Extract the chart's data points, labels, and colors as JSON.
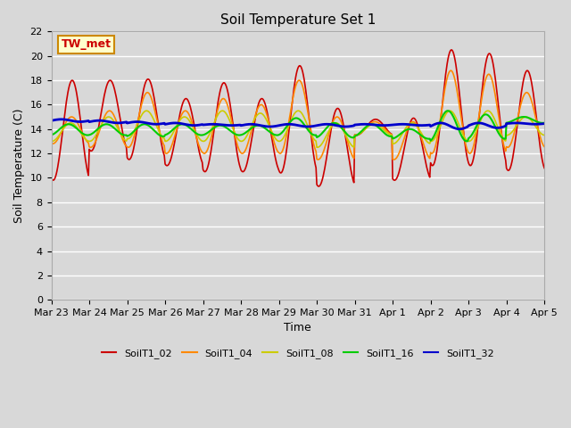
{
  "title": "Soil Temperature Set 1",
  "xlabel": "Time",
  "ylabel": "Soil Temperature (C)",
  "ylim": [
    0,
    22
  ],
  "yticks": [
    0,
    2,
    4,
    6,
    8,
    10,
    12,
    14,
    16,
    18,
    20,
    22
  ],
  "annotation_text": "TW_met",
  "annotation_color": "#cc0000",
  "annotation_bg": "#ffffcc",
  "annotation_border": "#cc8800",
  "bg_color": "#d8d8d8",
  "plot_bg_color": "#d8d8d8",
  "series_names": [
    "SoilT1_02",
    "SoilT1_04",
    "SoilT1_08",
    "SoilT1_16",
    "SoilT1_32"
  ],
  "series_colors": [
    "#cc0000",
    "#ff8800",
    "#cccc00",
    "#00cc00",
    "#0000cc"
  ],
  "series_linewidths": [
    1.2,
    1.2,
    1.2,
    1.5,
    2.0
  ],
  "xtick_labels": [
    "Mar 23",
    "Mar 24",
    "Mar 25",
    "Mar 26",
    "Mar 27",
    "Mar 28",
    "Mar 29",
    "Mar 30",
    "Mar 31",
    "Apr 1",
    "Apr 2",
    "Apr 3",
    "Apr 4",
    "Apr 5"
  ],
  "figsize": [
    6.4,
    4.8
  ],
  "dpi": 100
}
